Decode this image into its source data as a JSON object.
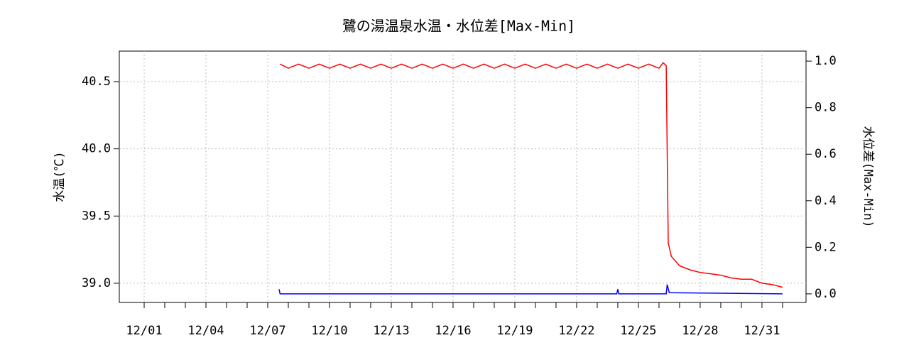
{
  "chart_data": {
    "type": "line",
    "title": "鷺の湯温泉水温・水位差[Max-Min]",
    "ylabel": "水温(℃)",
    "y2label": "水位差(Max-Min)",
    "xlim": [
      -0.207,
      33.14
    ],
    "xticks": [
      {
        "value": 1,
        "label": "12/01"
      },
      {
        "value": 4,
        "label": "12/04"
      },
      {
        "value": 7,
        "label": "12/07"
      },
      {
        "value": 10,
        "label": "12/10"
      },
      {
        "value": 13,
        "label": "12/13"
      },
      {
        "value": 16,
        "label": "12/16"
      },
      {
        "value": 19,
        "label": "12/19"
      },
      {
        "value": 22,
        "label": "12/22"
      },
      {
        "value": 25,
        "label": "12/25"
      },
      {
        "value": 28,
        "label": "12/28"
      },
      {
        "value": 31,
        "label": "12/31"
      }
    ],
    "xminorticks": [
      2,
      3,
      5,
      6,
      8,
      9,
      11,
      12,
      14,
      15,
      17,
      18,
      20,
      21,
      23,
      24,
      26,
      27,
      29,
      30,
      32
    ],
    "ylim": [
      38.857,
      40.727
    ],
    "yticks": [
      {
        "value": 39,
        "label": "39.0"
      },
      39.5,
      {
        "value": 40,
        "label": "40.0"
      },
      40.5
    ],
    "y2lim": [
      -0.037,
      1.043
    ],
    "y2ticks": [
      {
        "value": 0,
        "label": "0.0"
      },
      0.2,
      0.4,
      0.6,
      0.8,
      {
        "value": 1,
        "label": "1.0"
      }
    ],
    "grid": true,
    "series": [
      {
        "name": "水温",
        "color": "#ff0000",
        "x": [
          7.6,
          8.0,
          8.5,
          9.0,
          9.5,
          10.0,
          10.5,
          11.0,
          11.5,
          12.0,
          12.5,
          13.0,
          13.5,
          14.0,
          14.5,
          15.0,
          15.5,
          16.0,
          16.5,
          17.0,
          17.5,
          18.0,
          18.5,
          19.0,
          19.5,
          20.0,
          20.5,
          21.0,
          21.5,
          22.0,
          22.5,
          23.0,
          23.5,
          24.0,
          24.5,
          25.0,
          25.5,
          26.0,
          26.2,
          26.35,
          26.45,
          26.6,
          27.0,
          27.5,
          28.0,
          28.5,
          29.0,
          29.5,
          30.0,
          30.5,
          31.0,
          31.5,
          32.0
        ],
        "values": [
          40.63,
          40.6,
          40.63,
          40.6,
          40.63,
          40.6,
          40.63,
          40.6,
          40.63,
          40.6,
          40.63,
          40.6,
          40.63,
          40.6,
          40.63,
          40.6,
          40.63,
          40.6,
          40.63,
          40.6,
          40.63,
          40.6,
          40.63,
          40.6,
          40.63,
          40.6,
          40.63,
          40.6,
          40.63,
          40.6,
          40.63,
          40.6,
          40.63,
          40.6,
          40.63,
          40.6,
          40.63,
          40.6,
          40.64,
          40.62,
          39.3,
          39.2,
          39.13,
          39.1,
          39.08,
          39.07,
          39.06,
          39.04,
          39.03,
          39.03,
          39.0,
          38.99,
          38.97
        ]
      },
      {
        "name": "水位差",
        "color": "#0000ff",
        "axis": "y2",
        "x": [
          7.55,
          7.6,
          23.95,
          24.0,
          24.05,
          26.35,
          26.4,
          26.5,
          32.0
        ],
        "values": [
          0.02,
          0.0,
          0.0,
          0.02,
          0.0,
          0.0,
          0.04,
          0.005,
          0.0
        ]
      }
    ]
  }
}
